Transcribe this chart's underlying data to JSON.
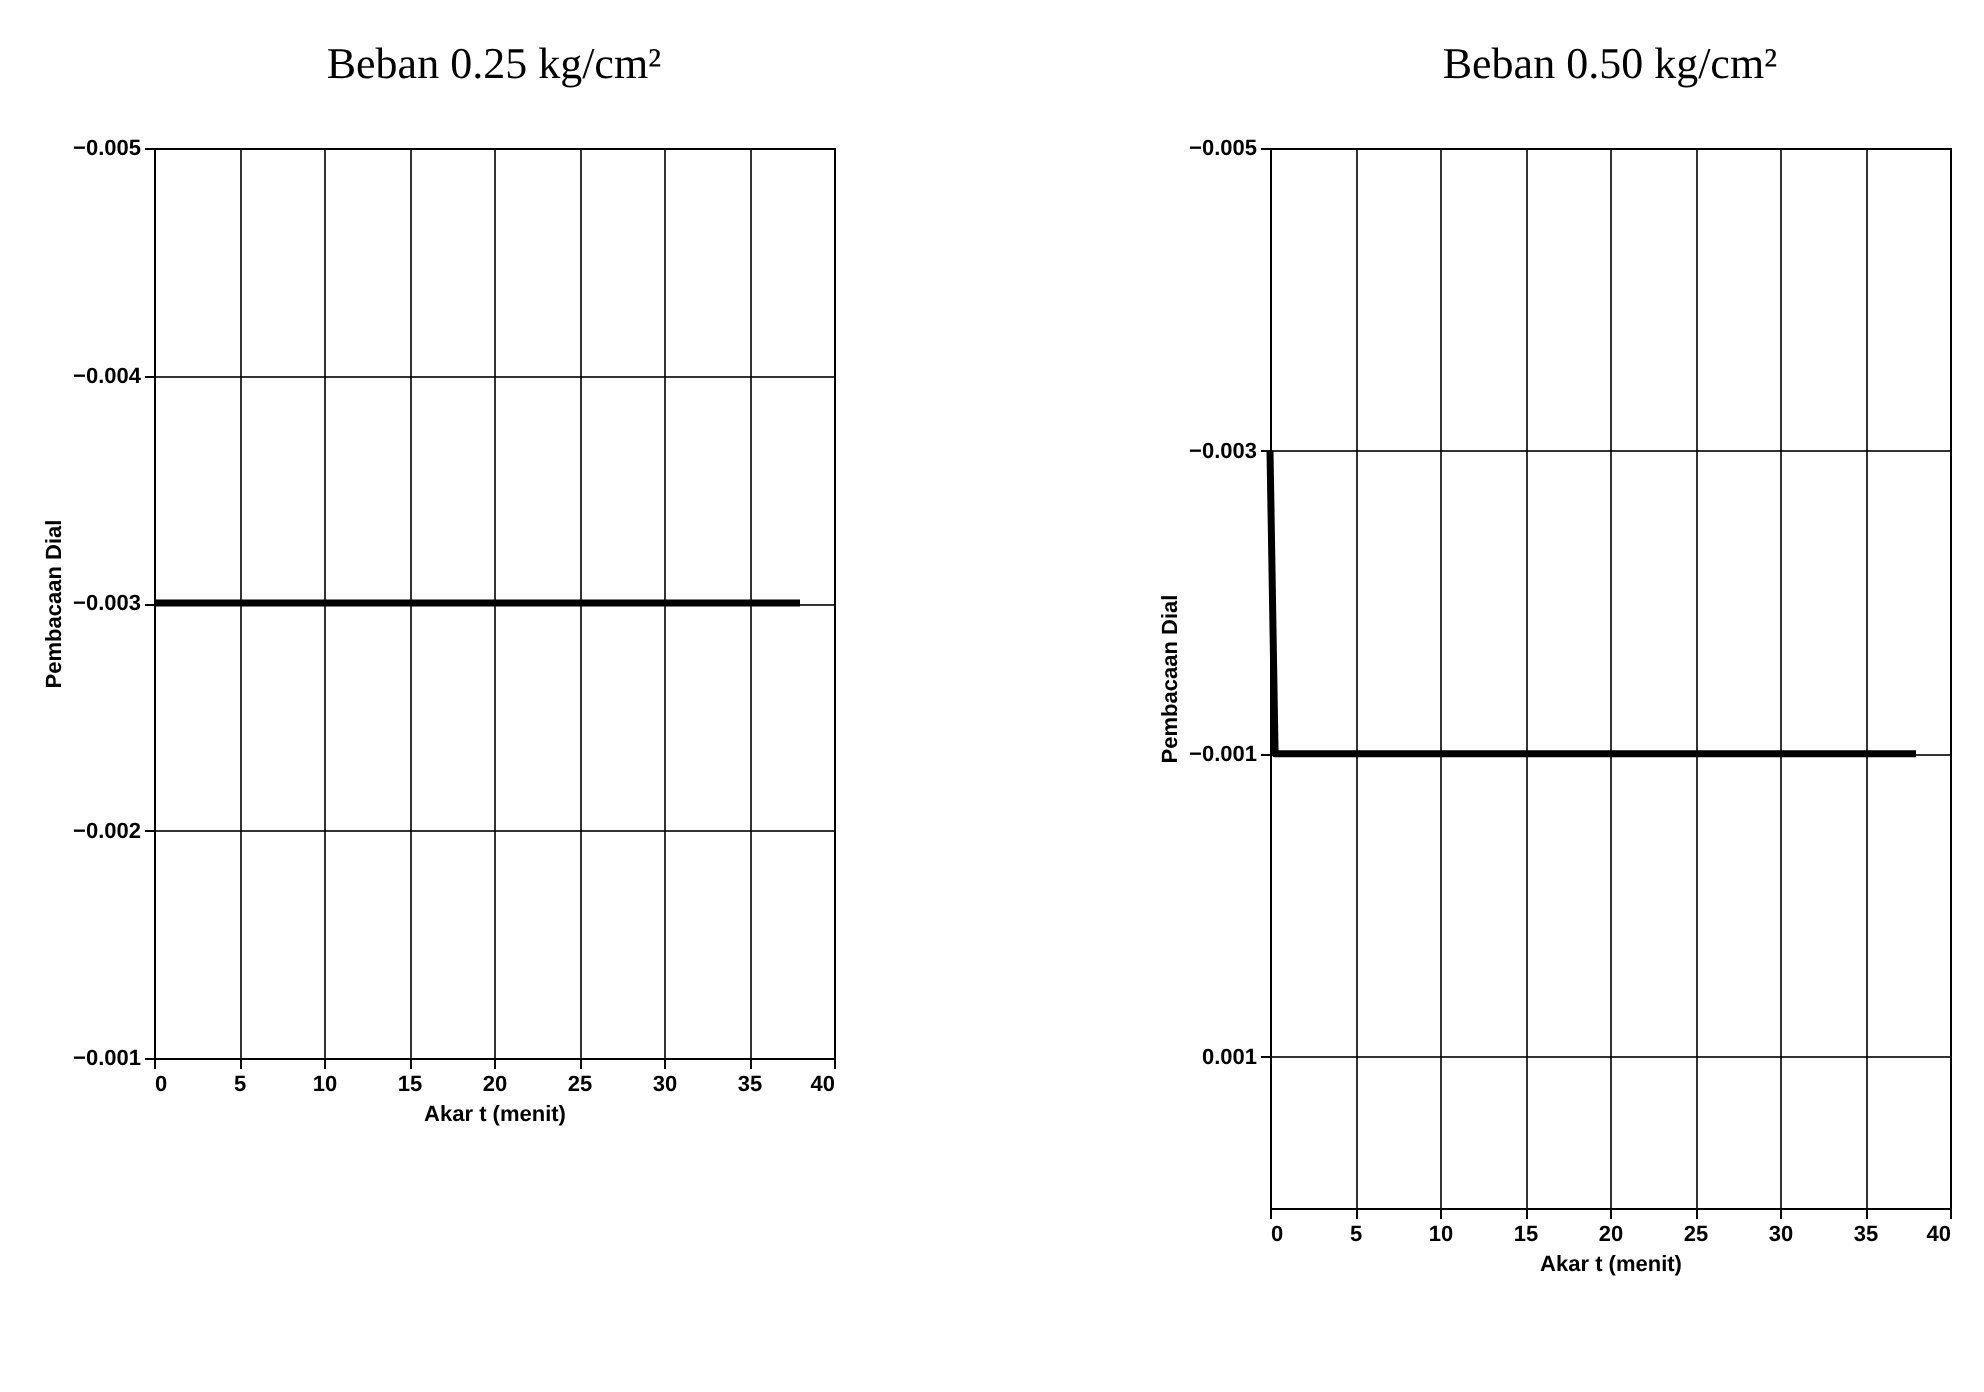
{
  "chart_data": [
    {
      "type": "line",
      "title": "Beban 0.25 kg/cm²",
      "xlabel": "Akar t (menit)",
      "ylabel": "Pembacaan Dial",
      "x": [
        0,
        38
      ],
      "series": [
        {
          "color": "#000000",
          "values": [
            -0.003,
            -0.003
          ]
        }
      ],
      "xlim": [
        0,
        40
      ],
      "xticks": [
        0,
        5,
        10,
        15,
        20,
        25,
        30,
        35,
        40
      ],
      "ylim": [
        -0.001,
        -0.005
      ],
      "yticks": [
        -0.005,
        -0.004,
        -0.003,
        -0.002,
        -0.001
      ],
      "grid": true
    },
    {
      "type": "line",
      "title": "Beban 0.50 kg/cm²",
      "xlabel": "Akar t (menit)",
      "ylabel": "Pembacaan Dial",
      "x": [
        0,
        0.3,
        38
      ],
      "series": [
        {
          "color": "#000000",
          "values": [
            -0.003,
            -0.001,
            -0.001
          ]
        }
      ],
      "xlim": [
        0,
        40
      ],
      "xticks": [
        0,
        5,
        10,
        15,
        20,
        25,
        30,
        35,
        40
      ],
      "ylim": [
        0.002,
        -0.005
      ],
      "yticks": [
        -0.005,
        -0.003,
        -0.001,
        0.001
      ],
      "grid": true
    }
  ]
}
